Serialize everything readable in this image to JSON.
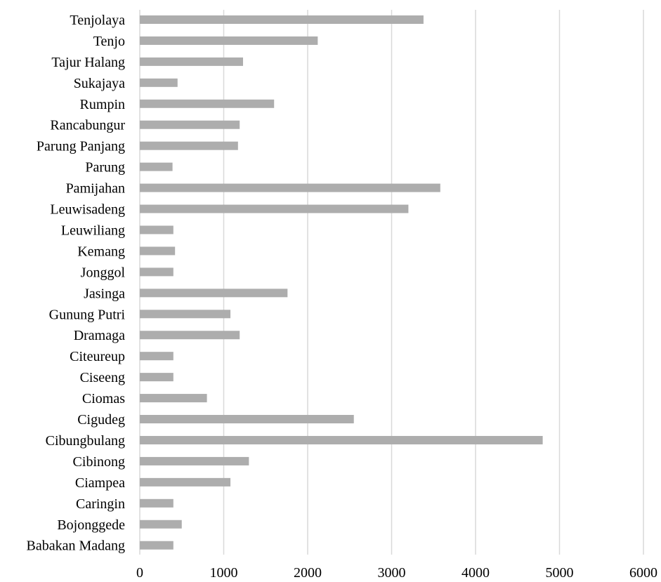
{
  "chart_data": {
    "type": "bar",
    "orientation": "horizontal",
    "title": "",
    "xlabel": "",
    "ylabel": "",
    "categories": [
      "Babakan Madang",
      "Bojonggede",
      "Caringin",
      "Ciampea",
      "Cibinong",
      "Cibungbulang",
      "Cigudeg",
      "Ciomas",
      "Ciseeng",
      "Citeureup",
      "Dramaga",
      "Gunung Putri",
      "Jasinga",
      "Jonggol",
      "Kemang",
      "Leuwiliang",
      "Leuwisadeng",
      "Pamijahan",
      "Parung",
      "Parung Panjang",
      "Rancabungur",
      "Rumpin",
      "Sukajaya",
      "Tajur Halang",
      "Tenjo",
      "Tenjolaya"
    ],
    "values": [
      400,
      500,
      400,
      1080,
      1300,
      4800,
      2550,
      800,
      400,
      400,
      1190,
      1080,
      1760,
      400,
      420,
      400,
      3200,
      3580,
      390,
      1170,
      1190,
      1600,
      450,
      1230,
      2120,
      3380
    ],
    "xlim": [
      0,
      6000
    ],
    "xticks": [
      0,
      1000,
      2000,
      3000,
      4000,
      5000,
      6000
    ],
    "grid": "vertical",
    "bar_color": "#adadad",
    "grid_color": "#d9d9d9",
    "legend": "none"
  }
}
